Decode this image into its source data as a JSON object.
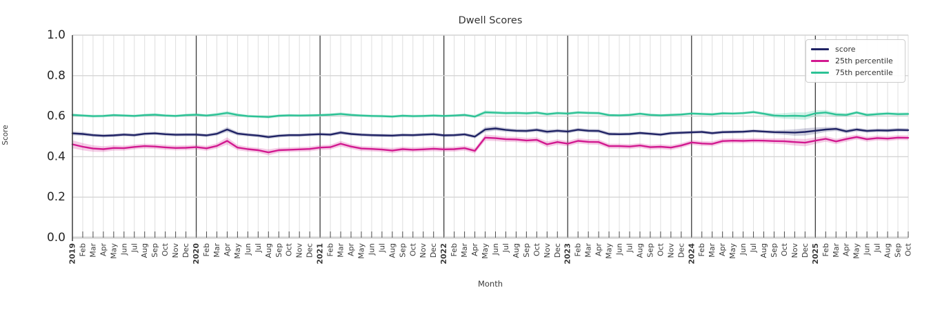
{
  "title": "Dwell Scores",
  "xlabel": "Month",
  "ylabel": "Score",
  "legend": {
    "items": [
      {
        "label": "score"
      },
      {
        "label": "25th percentile"
      },
      {
        "label": "75th percentile"
      }
    ]
  },
  "chart_data": {
    "type": "line",
    "title": "Dwell Scores",
    "xlabel": "Month",
    "ylabel": "Score",
    "ylim": [
      0.0,
      1.0
    ],
    "yticks": [
      0.0,
      0.2,
      0.4,
      0.6,
      0.8,
      1.0
    ],
    "grid": true,
    "legend_position": "upper right",
    "x_tick_labels": [
      "2019",
      "Feb",
      "Mar",
      "Apr",
      "May",
      "Jun",
      "Jul",
      "Aug",
      "Sep",
      "Oct",
      "Nov",
      "Dec",
      "2020",
      "Feb",
      "Mar",
      "Apr",
      "May",
      "Jun",
      "Jul",
      "Aug",
      "Sep",
      "Oct",
      "Nov",
      "Dec",
      "2021",
      "Feb",
      "Mar",
      "Apr",
      "May",
      "Jun",
      "Jul",
      "Aug",
      "Sep",
      "Oct",
      "Nov",
      "Dec",
      "2022",
      "Feb",
      "Mar",
      "Apr",
      "May",
      "Jun",
      "Jul",
      "Aug",
      "Sep",
      "Oct",
      "Nov",
      "Dec",
      "2023",
      "Feb",
      "Mar",
      "Apr",
      "May",
      "Jun",
      "Jul",
      "Aug",
      "Sep",
      "Oct",
      "Nov",
      "Dec",
      "2024",
      "Feb",
      "Mar",
      "Apr",
      "May",
      "Jun",
      "Jul",
      "Aug",
      "Sep",
      "Oct",
      "Nov",
      "Dec",
      "2025",
      "Feb",
      "Mar",
      "Apr",
      "May",
      "Jun",
      "Jul",
      "Aug",
      "Sep",
      "Oct"
    ],
    "series": [
      {
        "name": "score",
        "color": "#1f2264",
        "values": [
          0.515,
          0.512,
          0.506,
          0.503,
          0.505,
          0.509,
          0.506,
          0.513,
          0.515,
          0.511,
          0.508,
          0.509,
          0.509,
          0.505,
          0.513,
          0.534,
          0.514,
          0.508,
          0.504,
          0.497,
          0.503,
          0.506,
          0.506,
          0.509,
          0.511,
          0.509,
          0.519,
          0.512,
          0.508,
          0.506,
          0.505,
          0.504,
          0.507,
          0.506,
          0.509,
          0.511,
          0.505,
          0.506,
          0.51,
          0.499,
          0.534,
          0.539,
          0.532,
          0.528,
          0.527,
          0.532,
          0.523,
          0.528,
          0.524,
          0.533,
          0.528,
          0.527,
          0.512,
          0.511,
          0.512,
          0.517,
          0.513,
          0.509,
          0.516,
          0.518,
          0.52,
          0.522,
          0.516,
          0.521,
          0.522,
          0.523,
          0.527,
          0.524,
          0.521,
          0.52,
          0.519,
          0.522,
          0.528,
          0.534,
          0.537,
          0.525,
          0.534,
          0.527,
          0.53,
          0.529,
          0.532,
          0.531
        ],
        "band": [
          0.01,
          0.009,
          0.008,
          0.008,
          0.008,
          0.008,
          0.008,
          0.008,
          0.008,
          0.008,
          0.008,
          0.008,
          0.008,
          0.008,
          0.009,
          0.012,
          0.009,
          0.008,
          0.008,
          0.009,
          0.008,
          0.008,
          0.008,
          0.008,
          0.008,
          0.008,
          0.009,
          0.008,
          0.008,
          0.008,
          0.008,
          0.008,
          0.008,
          0.008,
          0.008,
          0.008,
          0.008,
          0.008,
          0.008,
          0.009,
          0.012,
          0.011,
          0.01,
          0.009,
          0.009,
          0.009,
          0.01,
          0.009,
          0.009,
          0.009,
          0.009,
          0.009,
          0.009,
          0.008,
          0.008,
          0.008,
          0.008,
          0.008,
          0.008,
          0.008,
          0.008,
          0.008,
          0.008,
          0.008,
          0.008,
          0.008,
          0.008,
          0.008,
          0.009,
          0.012,
          0.016,
          0.018,
          0.016,
          0.012,
          0.01,
          0.01,
          0.009,
          0.009,
          0.009,
          0.009,
          0.009,
          0.009
        ]
      },
      {
        "name": "25th percentile",
        "color": "#d2188f",
        "values": [
          0.461,
          0.449,
          0.44,
          0.437,
          0.443,
          0.442,
          0.448,
          0.452,
          0.45,
          0.446,
          0.443,
          0.444,
          0.447,
          0.441,
          0.453,
          0.478,
          0.445,
          0.437,
          0.432,
          0.421,
          0.432,
          0.434,
          0.436,
          0.438,
          0.445,
          0.447,
          0.464,
          0.45,
          0.44,
          0.438,
          0.435,
          0.43,
          0.437,
          0.434,
          0.436,
          0.439,
          0.436,
          0.437,
          0.442,
          0.429,
          0.494,
          0.491,
          0.486,
          0.485,
          0.48,
          0.483,
          0.461,
          0.472,
          0.464,
          0.478,
          0.473,
          0.472,
          0.452,
          0.452,
          0.45,
          0.455,
          0.447,
          0.449,
          0.445,
          0.455,
          0.47,
          0.465,
          0.463,
          0.477,
          0.479,
          0.478,
          0.48,
          0.479,
          0.477,
          0.476,
          0.472,
          0.469,
          0.479,
          0.488,
          0.475,
          0.487,
          0.497,
          0.486,
          0.492,
          0.489,
          0.494,
          0.493
        ],
        "band": [
          0.02,
          0.018,
          0.016,
          0.014,
          0.013,
          0.012,
          0.012,
          0.012,
          0.012,
          0.012,
          0.012,
          0.012,
          0.012,
          0.012,
          0.013,
          0.018,
          0.013,
          0.012,
          0.012,
          0.015,
          0.012,
          0.012,
          0.012,
          0.012,
          0.012,
          0.012,
          0.014,
          0.012,
          0.012,
          0.012,
          0.012,
          0.013,
          0.012,
          0.012,
          0.012,
          0.012,
          0.012,
          0.012,
          0.012,
          0.013,
          0.015,
          0.014,
          0.013,
          0.013,
          0.013,
          0.013,
          0.014,
          0.013,
          0.013,
          0.013,
          0.013,
          0.013,
          0.012,
          0.012,
          0.012,
          0.012,
          0.012,
          0.012,
          0.012,
          0.012,
          0.012,
          0.012,
          0.012,
          0.012,
          0.012,
          0.012,
          0.012,
          0.012,
          0.013,
          0.015,
          0.017,
          0.018,
          0.016,
          0.014,
          0.013,
          0.013,
          0.012,
          0.012,
          0.012,
          0.012,
          0.012,
          0.012
        ]
      },
      {
        "name": "75th percentile",
        "color": "#2cc295",
        "values": [
          0.606,
          0.603,
          0.6,
          0.601,
          0.605,
          0.603,
          0.601,
          0.605,
          0.607,
          0.603,
          0.601,
          0.605,
          0.607,
          0.603,
          0.608,
          0.616,
          0.606,
          0.6,
          0.598,
          0.596,
          0.602,
          0.604,
          0.603,
          0.604,
          0.605,
          0.607,
          0.611,
          0.606,
          0.603,
          0.601,
          0.6,
          0.598,
          0.602,
          0.6,
          0.601,
          0.603,
          0.601,
          0.603,
          0.606,
          0.598,
          0.619,
          0.617,
          0.615,
          0.616,
          0.614,
          0.617,
          0.61,
          0.615,
          0.613,
          0.618,
          0.616,
          0.615,
          0.605,
          0.604,
          0.606,
          0.612,
          0.606,
          0.604,
          0.606,
          0.608,
          0.613,
          0.611,
          0.609,
          0.614,
          0.613,
          0.615,
          0.62,
          0.612,
          0.603,
          0.601,
          0.602,
          0.6,
          0.614,
          0.618,
          0.608,
          0.606,
          0.618,
          0.606,
          0.61,
          0.613,
          0.61,
          0.611
        ],
        "band": [
          0.008,
          0.007,
          0.007,
          0.007,
          0.007,
          0.007,
          0.007,
          0.007,
          0.007,
          0.007,
          0.007,
          0.007,
          0.007,
          0.007,
          0.008,
          0.01,
          0.008,
          0.007,
          0.007,
          0.008,
          0.007,
          0.007,
          0.007,
          0.007,
          0.007,
          0.007,
          0.008,
          0.007,
          0.007,
          0.007,
          0.007,
          0.007,
          0.007,
          0.007,
          0.007,
          0.007,
          0.007,
          0.007,
          0.007,
          0.008,
          0.01,
          0.009,
          0.008,
          0.008,
          0.008,
          0.008,
          0.008,
          0.008,
          0.008,
          0.008,
          0.008,
          0.008,
          0.007,
          0.007,
          0.007,
          0.007,
          0.007,
          0.007,
          0.007,
          0.007,
          0.007,
          0.007,
          0.007,
          0.007,
          0.007,
          0.007,
          0.008,
          0.008,
          0.01,
          0.014,
          0.017,
          0.018,
          0.015,
          0.012,
          0.01,
          0.009,
          0.008,
          0.008,
          0.008,
          0.008,
          0.008,
          0.008
        ]
      }
    ]
  }
}
